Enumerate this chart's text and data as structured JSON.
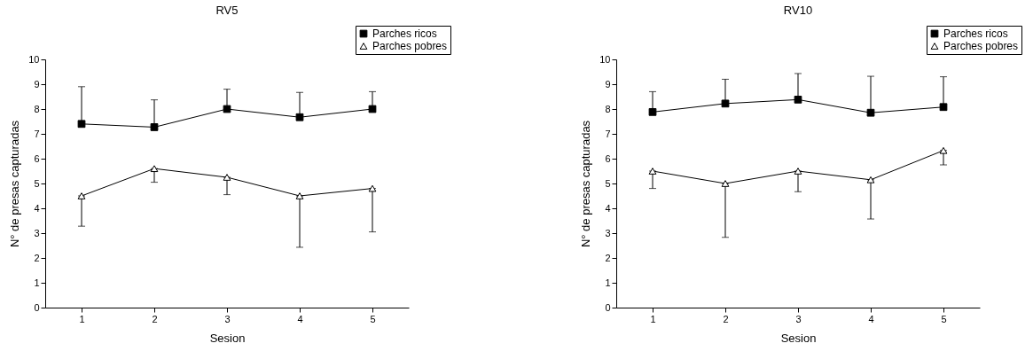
{
  "chart_data": [
    {
      "type": "line",
      "title": "RV5",
      "xlabel": "Sesion",
      "ylabel": "N° de presas capturadas",
      "x": [
        1,
        2,
        3,
        4,
        5
      ],
      "xlim": [
        0.5,
        5.5
      ],
      "xticks": [
        1,
        2,
        3,
        4,
        5
      ],
      "ylim": [
        0,
        10
      ],
      "yticks": [
        0,
        1,
        2,
        3,
        4,
        5,
        6,
        7,
        8,
        9,
        10
      ],
      "grid": false,
      "legend": "top right",
      "series": [
        {
          "name": "Parches ricos",
          "color": "#000000",
          "marker": "square",
          "values": [
            7.4,
            7.27,
            8.0,
            7.67,
            8.0
          ],
          "errors": [
            [
              7.4,
              8.9
            ],
            [
              7.27,
              8.37
            ],
            [
              8.0,
              8.8
            ],
            [
              7.67,
              8.67
            ],
            [
              8.0,
              8.7
            ]
          ]
        },
        {
          "name": "Parches pobres",
          "color": "#000000",
          "marker": "triangle",
          "values": [
            4.5,
            5.6,
            5.25,
            4.5,
            4.8
          ],
          "errors": [
            [
              3.28,
              4.5
            ],
            [
              5.05,
              5.6
            ],
            [
              4.55,
              5.25
            ],
            [
              2.43,
              4.5
            ],
            [
              3.05,
              4.8
            ]
          ]
        }
      ]
    },
    {
      "type": "line",
      "title": "RV10",
      "xlabel": "Sesion",
      "ylabel": "N° de presas capturadas",
      "x": [
        1,
        2,
        3,
        4,
        5
      ],
      "xlim": [
        0.5,
        5.5
      ],
      "xticks": [
        1,
        2,
        3,
        4,
        5
      ],
      "ylim": [
        0,
        10
      ],
      "yticks": [
        0,
        1,
        2,
        3,
        4,
        5,
        6,
        7,
        8,
        9,
        10
      ],
      "grid": false,
      "legend": "top right",
      "series": [
        {
          "name": "Parches ricos",
          "color": "#000000",
          "marker": "square",
          "values": [
            7.88,
            8.22,
            8.38,
            7.85,
            8.08
          ],
          "errors": [
            [
              7.88,
              8.7
            ],
            [
              8.22,
              9.2
            ],
            [
              8.38,
              9.43
            ],
            [
              7.85,
              9.32
            ],
            [
              8.08,
              9.3
            ]
          ]
        },
        {
          "name": "Parches pobres",
          "color": "#000000",
          "marker": "triangle",
          "values": [
            5.5,
            5.0,
            5.5,
            5.15,
            6.33
          ],
          "errors": [
            [
              4.8,
              5.5
            ],
            [
              2.83,
              5.0
            ],
            [
              4.67,
              5.5
            ],
            [
              3.57,
              5.15
            ],
            [
              5.75,
              6.33
            ]
          ]
        }
      ]
    }
  ]
}
